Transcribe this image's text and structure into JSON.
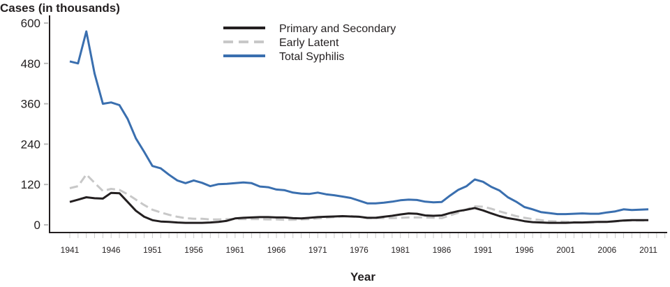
{
  "chart_data": {
    "type": "line",
    "ylabel": "Cases (in thousands)",
    "xlabel": "Year",
    "ylim": [
      0,
      600
    ],
    "yticks": [
      0,
      120,
      240,
      360,
      480,
      600
    ],
    "xlim": [
      1941,
      2011
    ],
    "xticks": [
      1941,
      1946,
      1951,
      1956,
      1961,
      1966,
      1971,
      1976,
      1981,
      1986,
      1991,
      1996,
      2001,
      2006,
      2011
    ],
    "grid": false,
    "legend_position": "top-center",
    "x": [
      1941,
      1942,
      1943,
      1944,
      1945,
      1946,
      1947,
      1948,
      1949,
      1950,
      1951,
      1952,
      1953,
      1954,
      1955,
      1956,
      1957,
      1958,
      1959,
      1960,
      1961,
      1962,
      1963,
      1964,
      1965,
      1966,
      1967,
      1968,
      1969,
      1970,
      1971,
      1972,
      1973,
      1974,
      1975,
      1976,
      1977,
      1978,
      1979,
      1980,
      1981,
      1982,
      1983,
      1984,
      1985,
      1986,
      1987,
      1988,
      1989,
      1990,
      1991,
      1992,
      1993,
      1994,
      1995,
      1996,
      1997,
      1998,
      1999,
      2000,
      2001,
      2002,
      2003,
      2004,
      2005,
      2006,
      2007,
      2008,
      2009,
      2010,
      2011
    ],
    "series": [
      {
        "name": "Primary and Secondary",
        "color": "#231f20",
        "dash": false,
        "values": [
          68,
          75,
          82,
          79,
          78,
          95,
          94,
          68,
          42,
          24,
          14,
          10,
          9,
          7,
          6,
          6,
          6,
          7,
          9,
          12,
          19,
          21,
          22,
          23,
          23,
          22,
          22,
          20,
          19,
          21,
          23,
          24,
          25,
          26,
          25,
          24,
          21,
          21,
          24,
          27,
          31,
          34,
          33,
          28,
          27,
          28,
          35,
          41,
          45,
          50,
          43,
          34,
          26,
          20,
          16,
          11,
          8,
          7,
          6,
          6,
          6,
          7,
          7,
          8,
          9,
          9,
          11,
          13,
          14,
          14,
          14
        ]
      },
      {
        "name": "Early Latent",
        "color": "#c8c8c8",
        "dash": true,
        "values": [
          109,
          115,
          150,
          125,
          101,
          107,
          104,
          91,
          75,
          59,
          45,
          37,
          30,
          24,
          20,
          18,
          18,
          16,
          16,
          17,
          17,
          17,
          17,
          17,
          16,
          16,
          15,
          15,
          16,
          17,
          19,
          21,
          23,
          25,
          26,
          24,
          20,
          20,
          20,
          20,
          21,
          22,
          22,
          22,
          21,
          20,
          28,
          36,
          46,
          55,
          54,
          48,
          40,
          33,
          26,
          21,
          17,
          14,
          11,
          10,
          9,
          8,
          7,
          7,
          8,
          9,
          10,
          12,
          13,
          13,
          13
        ]
      },
      {
        "name": "Total Syphilis",
        "color": "#3a6faf",
        "dash": false,
        "values": [
          486,
          480,
          575,
          450,
          360,
          364,
          356,
          315,
          257,
          217,
          175,
          168,
          149,
          132,
          124,
          132,
          125,
          115,
          121,
          122,
          124,
          126,
          124,
          114,
          112,
          105,
          103,
          96,
          93,
          92,
          96,
          91,
          88,
          84,
          80,
          72,
          64,
          64,
          66,
          69,
          73,
          75,
          74,
          69,
          67,
          68,
          87,
          104,
          115,
          135,
          128,
          113,
          102,
          82,
          69,
          53,
          46,
          38,
          35,
          32,
          32,
          33,
          34,
          33,
          33,
          37,
          40,
          46,
          44,
          45,
          46
        ]
      }
    ]
  }
}
